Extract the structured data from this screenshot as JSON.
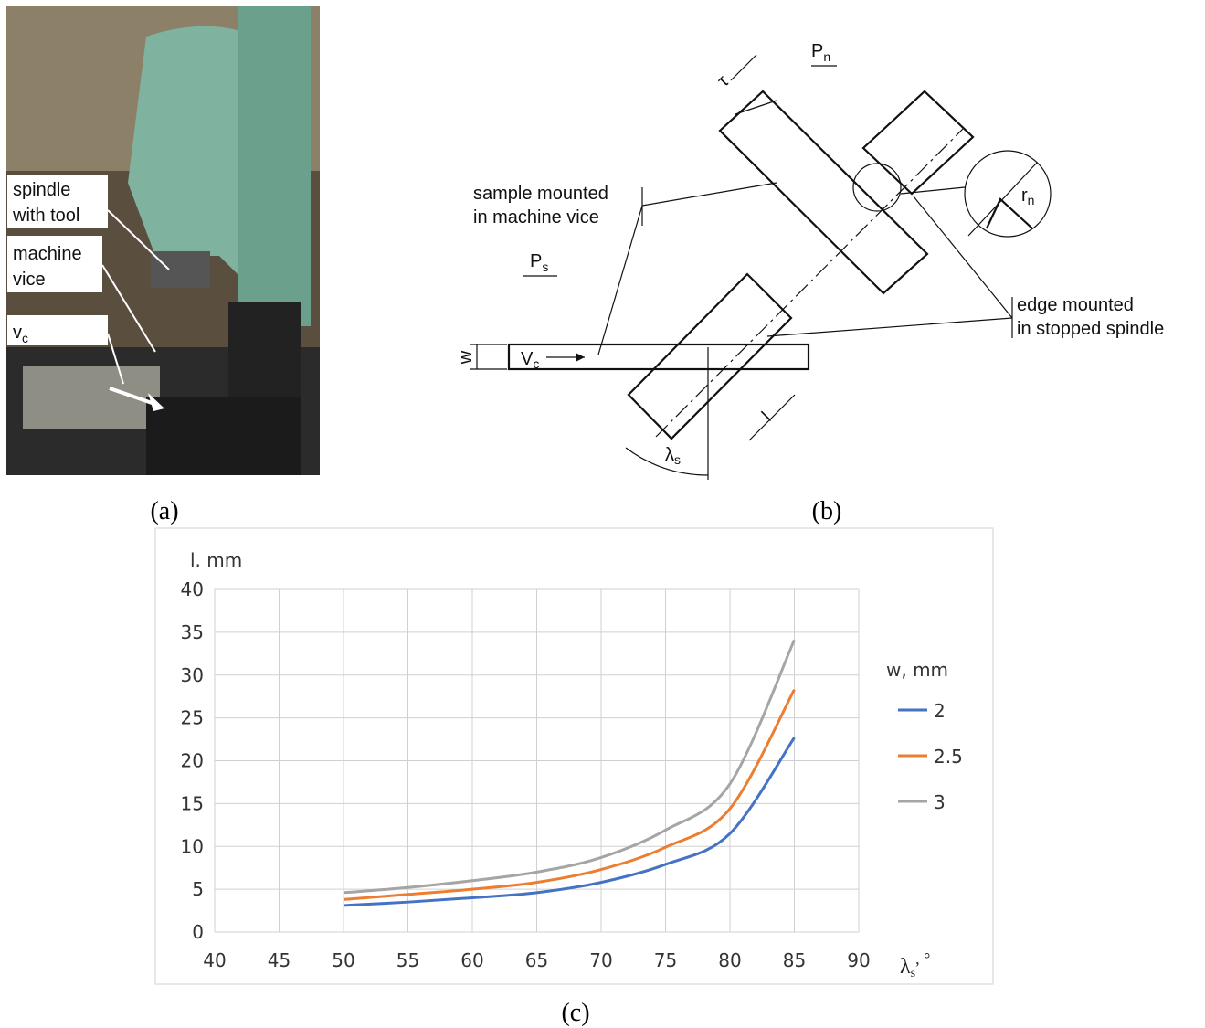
{
  "panel_a": {
    "labels": {
      "spindle": [
        "spindle",
        "with tool"
      ],
      "vice": [
        "machine",
        "vice"
      ],
      "velocity": {
        "main": "v",
        "sub": "c"
      }
    }
  },
  "panel_b": {
    "plane_n": {
      "main": "P",
      "sub": "n"
    },
    "plane_s": {
      "main": "P",
      "sub": "s"
    },
    "sample": [
      "sample mounted",
      "in machine vice"
    ],
    "edge": [
      "edge mounted",
      "in stopped spindle"
    ],
    "width": "w",
    "velocity": {
      "main": "V",
      "sub": "c"
    },
    "length": "l",
    "angle": {
      "main": "λ",
      "sub": "s"
    },
    "tau": "τ",
    "radius": {
      "main": "r",
      "sub": "n"
    }
  },
  "captions": [
    "(a)",
    "(b)",
    "(c)"
  ],
  "chart_data": {
    "type": "line",
    "y_label": "l. mm",
    "x_label": {
      "main": "λ",
      "sub": "s",
      "suffix": ", °"
    },
    "legend_title": "w, mm",
    "legend": "right",
    "grid": true,
    "x": [
      50,
      55,
      60,
      65,
      70,
      75,
      80,
      85
    ],
    "series": [
      {
        "name": "2",
        "color": "#4472c4",
        "values": [
          3.1,
          3.5,
          4.0,
          4.6,
          5.8,
          7.9,
          11.5,
          22.7
        ]
      },
      {
        "name": "2.5",
        "color": "#ed7d31",
        "values": [
          3.8,
          4.4,
          5.0,
          5.8,
          7.3,
          9.9,
          14.4,
          28.3
        ]
      },
      {
        "name": "3",
        "color": "#a5a5a5",
        "values": [
          4.6,
          5.2,
          6.0,
          7.0,
          8.7,
          11.9,
          17.3,
          34.1
        ]
      }
    ],
    "xlim": [
      40,
      90
    ],
    "xticks": [
      40,
      45,
      50,
      55,
      60,
      65,
      70,
      75,
      80,
      85,
      90
    ],
    "ylim": [
      0,
      40
    ],
    "yticks": [
      0,
      5,
      10,
      15,
      20,
      25,
      30,
      35,
      40
    ]
  }
}
